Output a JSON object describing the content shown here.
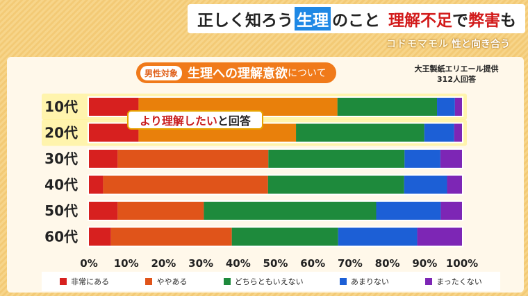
{
  "header": {
    "p1": "正しく知ろう",
    "p2": "生理",
    "p3": "のこと",
    "p4": "理解不足",
    "p5": "で",
    "p6": "弊害",
    "p7": "も"
  },
  "brand": {
    "logo": "コドモマモル",
    "text": "性と向き合う"
  },
  "subtitle": {
    "tag": "男性対象",
    "main": "生理への理解意欲",
    "rest": "について"
  },
  "source": {
    "line1": "大王製紙エリエール提供",
    "line2": "312人回答"
  },
  "callout": {
    "emph": "より理解したい",
    "rest": "と回答"
  },
  "colors": {
    "highlight": "#f0a400",
    "glow": "#fff07a"
  },
  "chart_data": {
    "type": "bar",
    "orientation": "horizontal-stacked",
    "categories": [
      "10代",
      "20代",
      "30代",
      "40代",
      "50代",
      "60代"
    ],
    "xlim": [
      0,
      100
    ],
    "xticks": [
      "0%",
      "10%",
      "20%",
      "30%",
      "40%",
      "50%",
      "60%",
      "70%",
      "80%",
      "90%",
      "100%"
    ],
    "highlighted_categories": [
      "10代",
      "20代"
    ],
    "series": [
      {
        "name": "非常にある",
        "color": "#d7201f",
        "values": [
          13.3,
          13.3,
          7.7,
          3.8,
          7.7,
          5.9
        ]
      },
      {
        "name": "ややある",
        "color": "#e0541a",
        "values": [
          53.3,
          42.2,
          40.4,
          44.2,
          23.1,
          32.4
        ]
      },
      {
        "name": "どちらともいえない",
        "color": "#1e8a3c",
        "values": [
          26.7,
          34.4,
          36.5,
          36.5,
          46.2,
          28.5
        ]
      },
      {
        "name": "あまりない",
        "color": "#1c5fd6",
        "values": [
          4.8,
          8.0,
          9.6,
          11.5,
          17.3,
          21.2
        ]
      },
      {
        "name": "まったくない",
        "color": "#7d26b5",
        "values": [
          1.9,
          2.1,
          5.8,
          4.0,
          5.7,
          12.0
        ]
      }
    ]
  }
}
